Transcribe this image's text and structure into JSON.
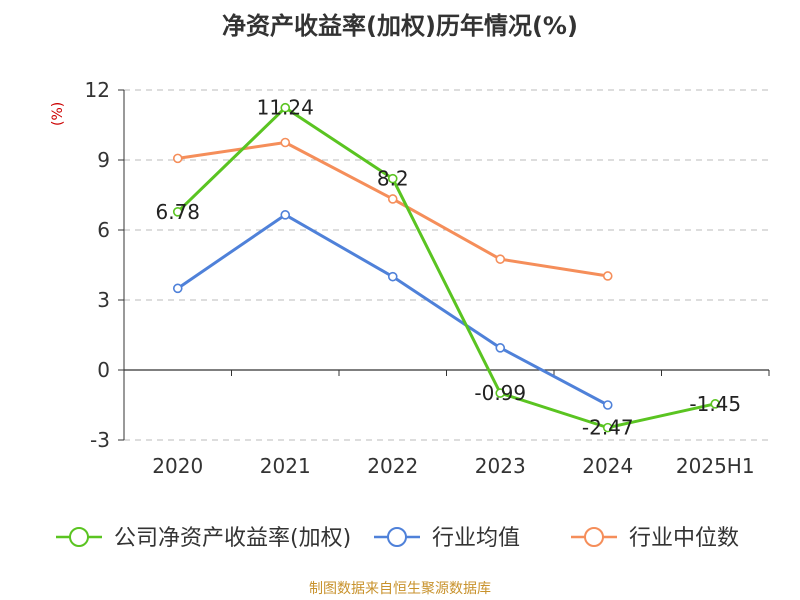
{
  "chart_data": {
    "type": "line",
    "title": "净资产收益率(加权)历年情况(%)",
    "ylabel": "(%)",
    "categories": [
      "2020",
      "2021",
      "2022",
      "2023",
      "2024",
      "2025H1"
    ],
    "y_ticks": [
      "12",
      "9",
      "6",
      "3",
      "0",
      "-3"
    ],
    "ylim": [
      -3,
      12
    ],
    "grid": true,
    "legend_position": "bottom",
    "series": [
      {
        "name": "公司净资产收益率(加权)",
        "color": "#5ac421",
        "values": [
          6.78,
          11.24,
          8.2,
          -0.99,
          -2.47,
          -1.45
        ],
        "labels": [
          "6.78",
          "11.24",
          "8.2",
          "-0.99",
          "-2.47",
          "-1.45"
        ]
      },
      {
        "name": "行业均值",
        "color": "#4f81d9",
        "values": [
          3.5,
          6.65,
          4.0,
          0.95,
          -1.5,
          null
        ]
      },
      {
        "name": "行业中位数",
        "color": "#f58e5a",
        "values": [
          9.07,
          9.75,
          7.33,
          4.75,
          4.03,
          null
        ]
      }
    ]
  },
  "source": "制图数据来自恒生聚源数据库",
  "colors": {
    "unit_label": "#cc0000",
    "source_text": "#c8922c",
    "axis": "#333333",
    "grid": "#bbbbbb"
  }
}
